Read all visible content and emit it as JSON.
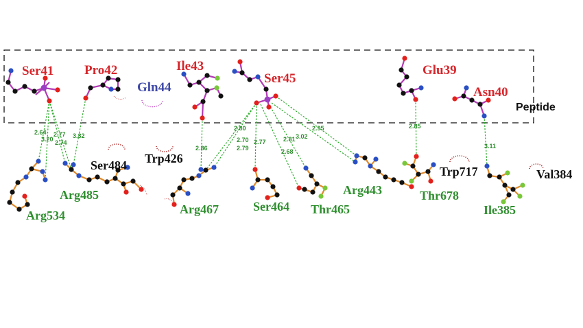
{
  "peptide_label": "Peptide",
  "peptide_residues": {
    "ser41": "Ser41",
    "pro42": "Pro42",
    "gln44": "Gln44",
    "ile43": "Ile43",
    "ser45": "Ser45",
    "glu39": "Glu39",
    "asn40": "Asn40"
  },
  "receptor_residues": {
    "ser484": "Ser484",
    "trp426": "Trp426",
    "arg485": "Arg485",
    "arg534": "Arg534",
    "arg467": "Arg467",
    "ser464": "Ser464",
    "thr465": "Thr465",
    "arg443": "Arg443",
    "trp717": "Trp717",
    "thr678": "Thr678",
    "ile385": "Ile385",
    "val384": "Val384"
  },
  "hbond_distances": {
    "d1": "2.64",
    "d2": "3.20",
    "d3": "2.77",
    "d4": "2.74",
    "d5": "3.32",
    "d6": "2.86",
    "d7": "2.80",
    "d8": "2.70",
    "d9": "2.79",
    "d10": "2.77",
    "d11": "2.81",
    "d12": "3.02",
    "d13": "2.68",
    "d14": "2.95",
    "d15": "2.85",
    "d16": "3.11"
  },
  "colors": {
    "peptide_name": "#d7262b",
    "hydrophobic_peptide_name": "#3f49a8",
    "hbond_receptor_name": "#2f8f2f",
    "hydrophobic_receptor_name": "#111111",
    "hbond_line": "#2fae2f",
    "peptide_bond": "#b23ab5",
    "receptor_bond": "#e08a2a",
    "carbon_atom": "#111111",
    "oxygen_atom": "#e3201b",
    "nitrogen_atom": "#2a4fc4",
    "phosphorus_atom": "#9b3fc3",
    "fluorine_atom": "#78c83a"
  }
}
